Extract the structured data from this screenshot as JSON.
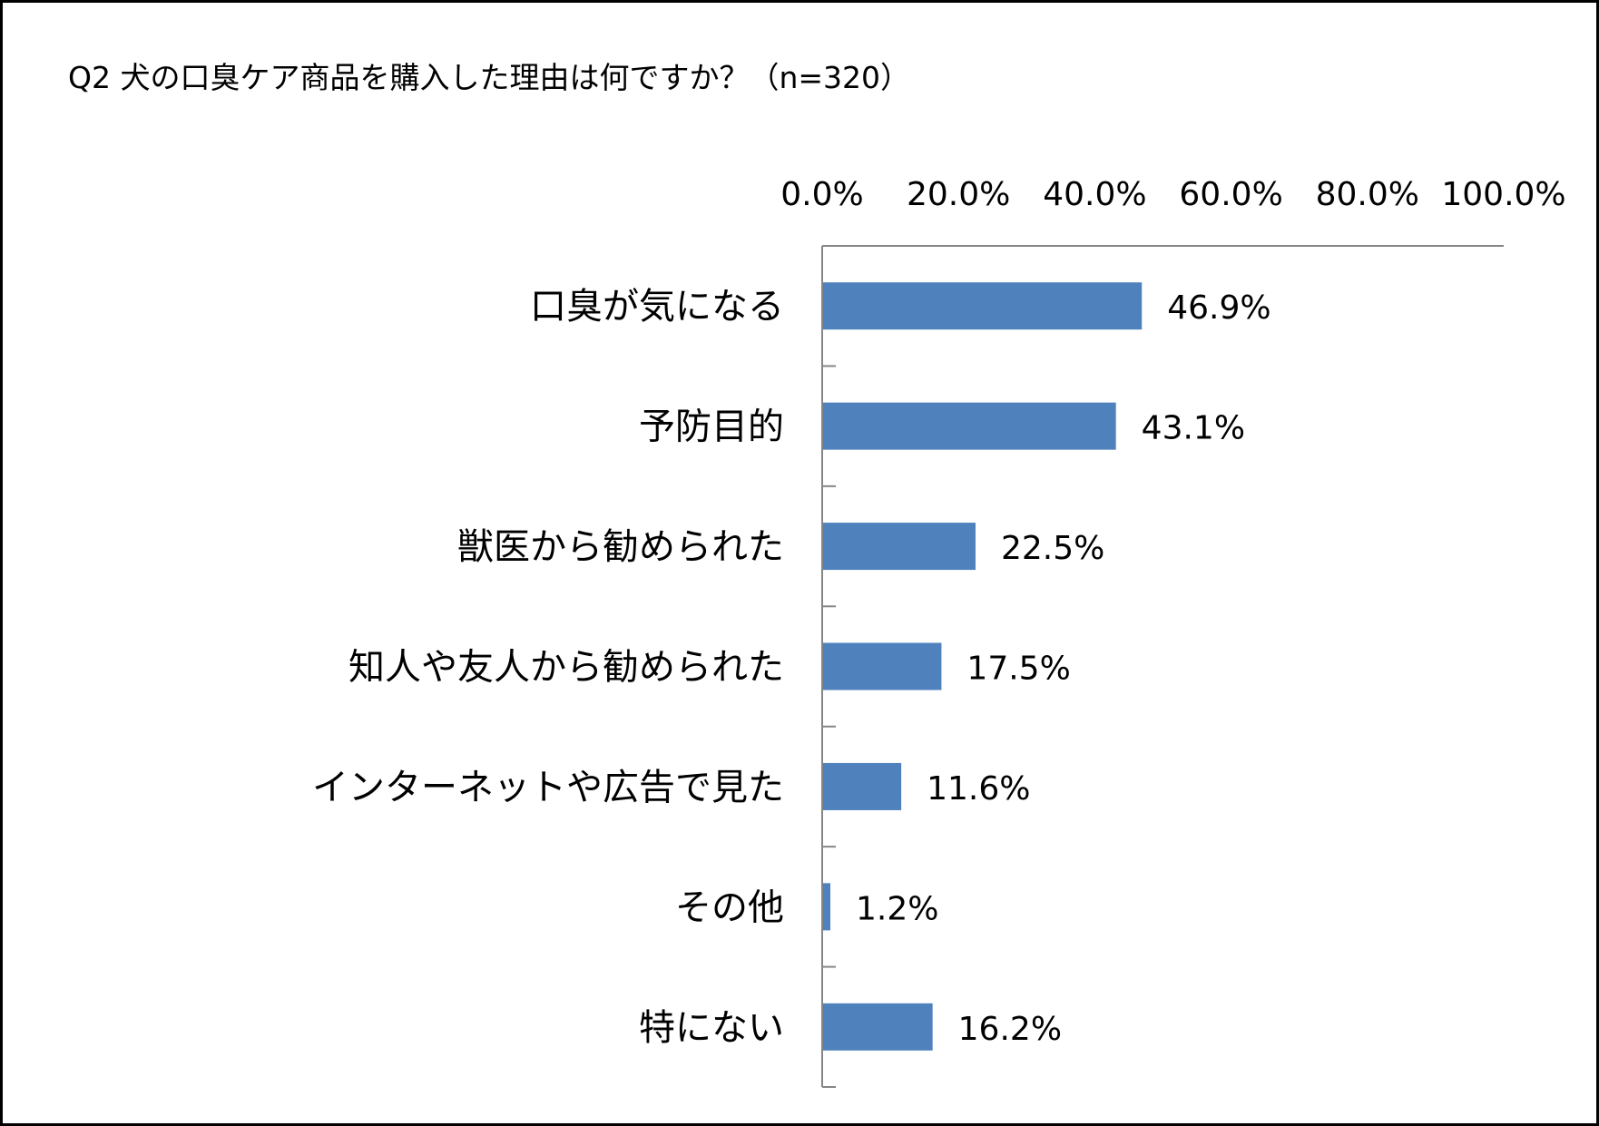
{
  "chart_data": {
    "type": "bar",
    "orientation": "horizontal",
    "title": "Q2 犬の口臭ケア商品を購入した理由は何ですか？（n=320）",
    "categories": [
      "口臭が気になる",
      "予防目的",
      "獣医から勧められた",
      "知人や友人から勧められた",
      "インターネットや広告で見た",
      "その他",
      "特にない"
    ],
    "values": [
      46.9,
      43.1,
      22.5,
      17.5,
      11.6,
      1.2,
      16.2
    ],
    "data_labels": [
      "46.9%",
      "43.1%",
      "22.5%",
      "17.5%",
      "11.6%",
      "1.2%",
      "16.2%"
    ],
    "x_ticks": [
      "0.0%",
      "20.0%",
      "40.0%",
      "60.0%",
      "80.0%",
      "100.0%"
    ],
    "xlim": [
      0,
      100
    ],
    "x_axis_position": "top",
    "grid": false,
    "legend": "none",
    "bar_color": "#4f81bd",
    "axis_color": "#868686"
  }
}
